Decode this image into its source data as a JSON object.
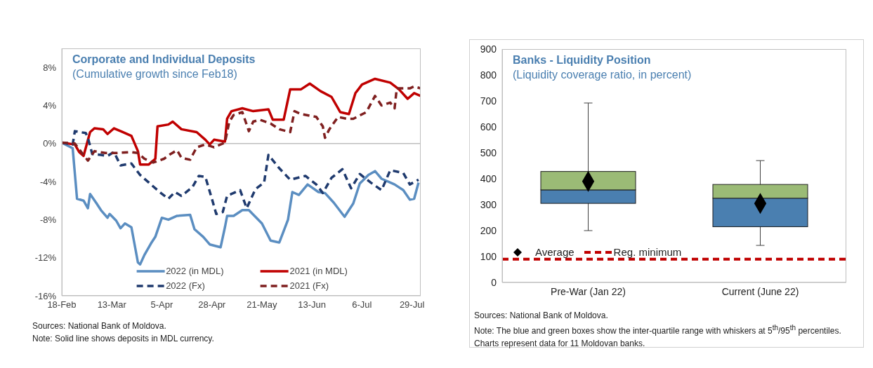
{
  "chart_data": [
    {
      "type": "line",
      "title": "Corporate and Individual Deposits",
      "subtitle": "(Cumulative growth since Feb18)",
      "xlim": [
        "--02-18",
        "--08-02"
      ],
      "xticks": [
        {
          "value": "--02-18",
          "label": "18-Feb"
        },
        {
          "value": "--03-13",
          "label": "13-Mar"
        },
        {
          "value": "--04-05",
          "label": "5-Apr"
        },
        {
          "value": "--04-28",
          "label": "28-Apr"
        },
        {
          "value": "--05-21",
          "label": "21-May"
        },
        {
          "value": "--06-13",
          "label": "13-Jun"
        },
        {
          "value": "--07-06",
          "label": "6-Jul"
        },
        {
          "value": "--07-29",
          "label": "29-Jul"
        }
      ],
      "ylim": [
        -16,
        10
      ],
      "yticks": [
        {
          "value": -16,
          "label": "-16%"
        },
        {
          "value": -12,
          "label": "-12%"
        },
        {
          "value": -8,
          "label": "-8%"
        },
        {
          "value": -4,
          "label": "-4%"
        },
        {
          "value": 0,
          "label": "0%"
        },
        {
          "value": 4,
          "label": "4%"
        },
        {
          "value": 8,
          "label": "8%"
        }
      ],
      "ref_lines": [
        {
          "axis": "y",
          "value": 0,
          "color": "#bfbfbf"
        }
      ],
      "legend": "bottom",
      "series": [
        {
          "name": "2022 (in MDL)",
          "color": "#5b8ec1",
          "x": [
            "--02-18",
            "--02-23",
            "--02-25",
            "--02-28",
            "--03-02",
            "--03-03",
            "--03-06",
            "--03-08",
            "--03-11",
            "--03-12",
            "--03-15",
            "--03-17",
            "--03-19",
            "--03-22",
            "--03-25",
            "--03-26",
            "--03-28",
            "--03-31",
            "--04-02",
            "--04-05",
            "--04-08",
            "--04-12",
            "--04-18",
            "--04-20",
            "--04-24",
            "--04-27",
            "--05-02",
            "--05-04",
            "--05-05",
            "--05-08",
            "--05-12",
            "--05-15",
            "--05-21",
            "--05-25",
            "--05-29",
            "--06-02",
            "--06-04",
            "--06-07",
            "--06-11",
            "--06-16",
            "--06-19",
            "--06-23",
            "--06-28",
            "--07-02",
            "--07-05",
            "--07-09",
            "--07-12",
            "--07-15",
            "--07-21",
            "--07-25",
            "--07-28",
            "--07-30",
            "--08-01"
          ],
          "values": [
            0.1,
            -0.5,
            -5.8,
            -6.0,
            -6.8,
            -5.3,
            -6.3,
            -7.0,
            -7.8,
            -7.4,
            -8.1,
            -8.9,
            -8.4,
            -8.8,
            -12.5,
            -12.7,
            -11.7,
            -10.5,
            -9.8,
            -7.8,
            -8.0,
            -7.6,
            -7.5,
            -9.0,
            -9.8,
            -10.6,
            -10.9,
            -8.8,
            -7.6,
            -7.6,
            -7.0,
            -7.0,
            -8.4,
            -10.2,
            -10.4,
            -8.0,
            -5.1,
            -5.4,
            -4.3,
            -5.1,
            -5.2,
            -6.2,
            -7.7,
            -6.3,
            -4.2,
            -3.3,
            -2.9,
            -3.7,
            -4.3,
            -4.9,
            -5.9,
            -5.8,
            -4.1
          ]
        },
        {
          "name": "2021 (in MDL)",
          "color": "#c00000",
          "x": [
            "--02-18",
            "--02-24",
            "--02-26",
            "--02-28",
            "--03-03",
            "--03-05",
            "--03-09",
            "--03-11",
            "--03-14",
            "--03-18",
            "--03-22",
            "--03-25",
            "--03-26",
            "--03-30",
            "--04-02",
            "--04-03",
            "--04-08",
            "--04-10",
            "--04-14",
            "--04-21",
            "--04-25",
            "--04-27",
            "--04-29",
            "--05-04",
            "--05-05",
            "--05-07",
            "--05-12",
            "--05-17",
            "--05-24",
            "--05-26",
            "--05-31",
            "--06-03",
            "--06-08",
            "--06-12",
            "--06-17",
            "--06-22",
            "--06-26",
            "--06-30",
            "--07-03",
            "--07-06",
            "--07-12",
            "--07-19",
            "--07-23",
            "--07-27",
            "--07-30",
            "--08-02"
          ],
          "values": [
            0.1,
            -0.1,
            -0.9,
            -1.3,
            1.2,
            1.6,
            1.5,
            1.0,
            1.6,
            1.2,
            0.8,
            -0.8,
            -2.2,
            -2.2,
            -1.6,
            1.8,
            2.0,
            2.3,
            1.5,
            1.2,
            0.4,
            -0.1,
            0.4,
            0.2,
            2.6,
            3.4,
            3.7,
            3.4,
            3.6,
            2.5,
            2.5,
            5.7,
            5.7,
            6.3,
            5.5,
            4.9,
            3.3,
            3.1,
            5.3,
            6.2,
            6.8,
            6.4,
            5.7,
            4.7,
            5.3,
            5.0
          ]
        },
        {
          "name": "2022 (Fx)",
          "color": "#1f3a6e",
          "line_style": "dashed",
          "x": [
            "--02-18",
            "--02-23",
            "--02-24",
            "--03-01",
            "--03-02",
            "--03-04",
            "--03-08",
            "--03-11",
            "--03-14",
            "--03-17",
            "--03-22",
            "--03-26",
            "--03-30",
            "--04-04",
            "--04-08",
            "--04-11",
            "--04-14",
            "--04-19",
            "--04-22",
            "--04-25",
            "--04-28",
            "--04-30",
            "--05-03",
            "--05-05",
            "--05-07",
            "--05-11",
            "--05-14",
            "--05-18",
            "--05-22",
            "--05-24",
            "--05-29",
            "--06-03",
            "--06-10",
            "--06-15",
            "--06-18",
            "--06-22",
            "--06-27",
            "--07-01",
            "--07-05",
            "--07-10",
            "--07-15",
            "--07-19",
            "--07-25",
            "--07-28",
            "--08-01"
          ],
          "values": [
            0.1,
            -0.1,
            1.3,
            1.1,
            0.6,
            -1.1,
            -1.2,
            -1.3,
            -0.9,
            -2.3,
            -2.1,
            -3.3,
            -4.1,
            -5.1,
            -5.8,
            -5.1,
            -5.5,
            -4.6,
            -3.4,
            -3.5,
            -5.8,
            -7.4,
            -7.2,
            -5.5,
            -5.3,
            -4.9,
            -6.8,
            -4.8,
            -4.1,
            -1.2,
            -2.6,
            -3.8,
            -3.4,
            -4.3,
            -5.2,
            -3.6,
            -2.7,
            -4.7,
            -3.2,
            -4.1,
            -4.9,
            -2.8,
            -3.1,
            -4.3,
            -3.8
          ]
        },
        {
          "name": "2021 (Fx)",
          "color": "#7f1f1f",
          "line_style": "dashed",
          "x": [
            "--02-18",
            "--02-24",
            "--02-27",
            "--03-02",
            "--03-05",
            "--03-10",
            "--03-15",
            "--03-22",
            "--03-25",
            "--03-28",
            "--04-01",
            "--04-06",
            "--04-09",
            "--04-12",
            "--04-14",
            "--04-18",
            "--04-21",
            "--04-25",
            "--04-29",
            "--05-04",
            "--05-06",
            "--05-08",
            "--05-12",
            "--05-15",
            "--05-17",
            "--05-20",
            "--05-25",
            "--05-29",
            "--06-03",
            "--06-05",
            "--06-08",
            "--06-15",
            "--06-18",
            "--06-19",
            "--06-21",
            "--06-25",
            "--06-29",
            "--07-02",
            "--07-08",
            "--07-12",
            "--07-15",
            "--07-19",
            "--07-21",
            "--07-22",
            "--07-28",
            "--07-30",
            "--08-02"
          ],
          "values": [
            0.1,
            0,
            -0.9,
            -1.8,
            -0.8,
            -1.0,
            -1.0,
            -0.9,
            -1.0,
            -1.6,
            -2.0,
            -1.6,
            -1.1,
            -0.7,
            -1.5,
            -1.7,
            -0.4,
            -0.1,
            -0.4,
            0.1,
            2.3,
            3.0,
            3.3,
            1.3,
            2.3,
            2.5,
            2.1,
            1.5,
            1.2,
            3.4,
            3.1,
            2.8,
            1.8,
            0.6,
            1.5,
            2.8,
            2.6,
            2.6,
            3.3,
            5.0,
            4.0,
            4.3,
            3.7,
            5.8,
            5.8,
            6.0,
            5.8
          ]
        }
      ],
      "annotations": [
        "Sources: National Bank of Moldova.",
        "Note: Solid line shows deposits in MDL currency."
      ]
    },
    {
      "type": "box",
      "title": "Banks - Liquidity Position",
      "subtitle": "(Liquidity coverage ratio, in percent)",
      "categories": [
        "Pre-War (Jan 22)",
        "Current (June 22)"
      ],
      "ylim": [
        0,
        900
      ],
      "yticks": [
        0,
        100,
        200,
        300,
        400,
        500,
        600,
        700,
        800,
        900
      ],
      "series": [
        {
          "type": "box",
          "color": "#9bbb76",
          "colors": [
            "#4a7fb0",
            "#4a7fb0"
          ],
          "boxes": [
            {
              "low": 200,
              "q1": 305,
              "median": 357,
              "q3": 428,
              "high": 692
            },
            {
              "low": 143,
              "q1": 215,
              "median": 325,
              "q3": 378,
              "high": 470
            }
          ]
        },
        {
          "type": "scatter",
          "name": "Average",
          "color": "#000000",
          "marker": "diamond",
          "x": [
            "Pre-War (Jan 22)",
            "Current (June 22)"
          ],
          "values": [
            390,
            305
          ]
        }
      ],
      "ref_lines": [
        {
          "axis": "y",
          "value": 90,
          "label": "Reg. minimum",
          "color": "#c00000",
          "line_style": "dashed"
        }
      ],
      "legend": "bottom left",
      "annotations": [
        "Sources: National Bank of Moldova.",
        "Note: The blue and green boxes show the inter-quartile range with whiskers at 5$^{th}$/95$^{th}$ percentiles.",
        "Charts represent data for 11 Moldovan banks."
      ]
    }
  ]
}
